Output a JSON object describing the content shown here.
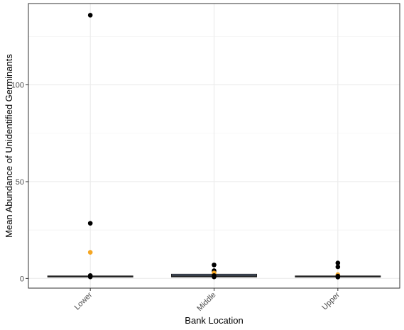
{
  "chart_data": {
    "type": "box",
    "xlabel": "Bank Location",
    "ylabel": "Mean Abundance of Unidentified Germinants",
    "categories": [
      "Lower",
      "Middle",
      "Upper"
    ],
    "ylim": [
      -5,
      142
    ],
    "y_ticks": [
      0,
      50,
      100
    ],
    "y_minor_ticks": [
      25,
      75,
      125
    ],
    "grid": true,
    "boxes": [
      {
        "category": "Lower",
        "q1": 0.8,
        "median": 1.0,
        "q3": 1.3
      },
      {
        "category": "Middle",
        "q1": 0.8,
        "median": 1.2,
        "q3": 2.2
      },
      {
        "category": "Upper",
        "q1": 0.8,
        "median": 1.0,
        "q3": 1.3
      }
    ],
    "points": [
      {
        "category": "Lower",
        "y": 136,
        "color": "#000000"
      },
      {
        "category": "Lower",
        "y": 28.5,
        "color": "#000000"
      },
      {
        "category": "Lower",
        "y": 13.5,
        "color": "#f5a623"
      },
      {
        "category": "Lower",
        "y": 1.5,
        "color": "#000000"
      },
      {
        "category": "Lower",
        "y": 0.8,
        "color": "#000000"
      },
      {
        "category": "Middle",
        "y": 7,
        "color": "#000000"
      },
      {
        "category": "Middle",
        "y": 4,
        "color": "#000000"
      },
      {
        "category": "Middle",
        "y": 2.8,
        "color": "#f5a623"
      },
      {
        "category": "Middle",
        "y": 1.5,
        "color": "#000000"
      },
      {
        "category": "Middle",
        "y": 0.8,
        "color": "#000000"
      },
      {
        "category": "Upper",
        "y": 8,
        "color": "#000000"
      },
      {
        "category": "Upper",
        "y": 6,
        "color": "#000000"
      },
      {
        "category": "Upper",
        "y": 2,
        "color": "#f5a623"
      },
      {
        "category": "Upper",
        "y": 1.2,
        "color": "#000000"
      },
      {
        "category": "Upper",
        "y": 0.7,
        "color": "#000000"
      }
    ],
    "colors": {
      "panel_border": "#333333",
      "grid_major": "#ebebeb",
      "grid_minor": "#f4f4f4",
      "box_fill": "#5a6e8c",
      "box_line": "#222222",
      "highlight": "#f5a623",
      "point": "#000000"
    }
  }
}
